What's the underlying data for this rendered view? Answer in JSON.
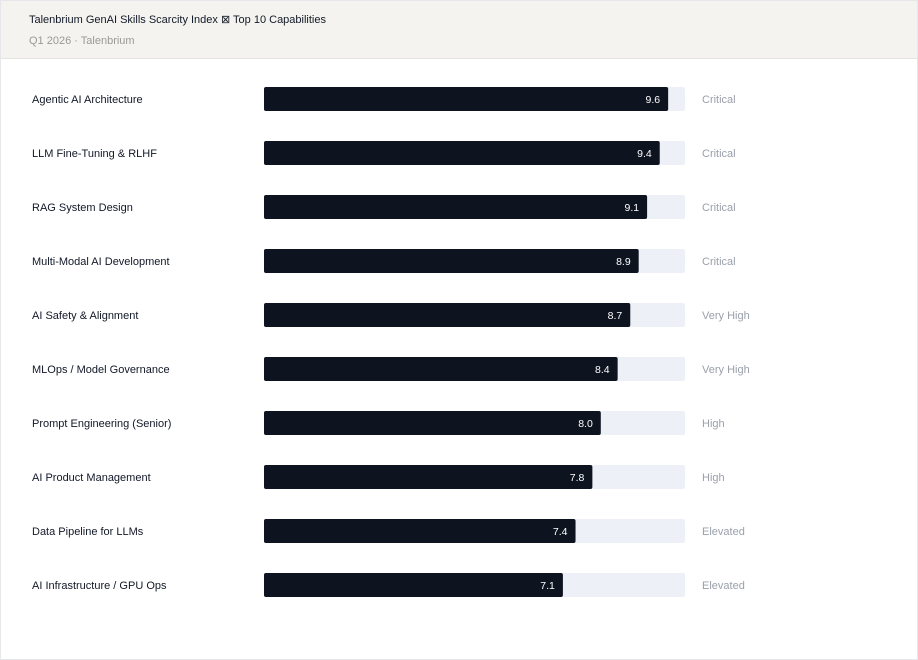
{
  "header": {
    "title": "Talenbrium GenAI Skills Scarcity Index ⊠ Top 10 Capabilities",
    "subtitle": "Q1 2026 · Talenbrium"
  },
  "colors": {
    "bar": "#0e1320",
    "track": "#edf0f7",
    "label": "#111827",
    "tier": "#9aa0ab",
    "value": "#ffffff"
  },
  "chart_data": {
    "type": "bar",
    "orientation": "horizontal",
    "title": "Talenbrium GenAI Skills Scarcity Index ⊠ Top 10 Capabilities",
    "subtitle": "Q1 2026 · Talenbrium",
    "xlim": [
      0,
      10
    ],
    "grid": false,
    "categories": [
      "Agentic AI Architecture",
      "LLM Fine-Tuning & RLHF",
      "RAG System Design",
      "Multi-Modal AI Development",
      "AI Safety & Alignment",
      "MLOps / Model Governance",
      "Prompt Engineering (Senior)",
      "AI Product Management",
      "Data Pipeline for LLMs",
      "AI Infrastructure / GPU Ops"
    ],
    "values": [
      9.6,
      9.4,
      9.1,
      8.9,
      8.7,
      8.4,
      8.0,
      7.8,
      7.4,
      7.1
    ],
    "value_labels": [
      "9.6",
      "9.4",
      "9.1",
      "8.9",
      "8.7",
      "8.4",
      "8.0",
      "7.8",
      "7.4",
      "7.1"
    ],
    "tiers": [
      "Critical",
      "Critical",
      "Critical",
      "Critical",
      "Very High",
      "Very High",
      "High",
      "High",
      "Elevated",
      "Elevated"
    ]
  }
}
